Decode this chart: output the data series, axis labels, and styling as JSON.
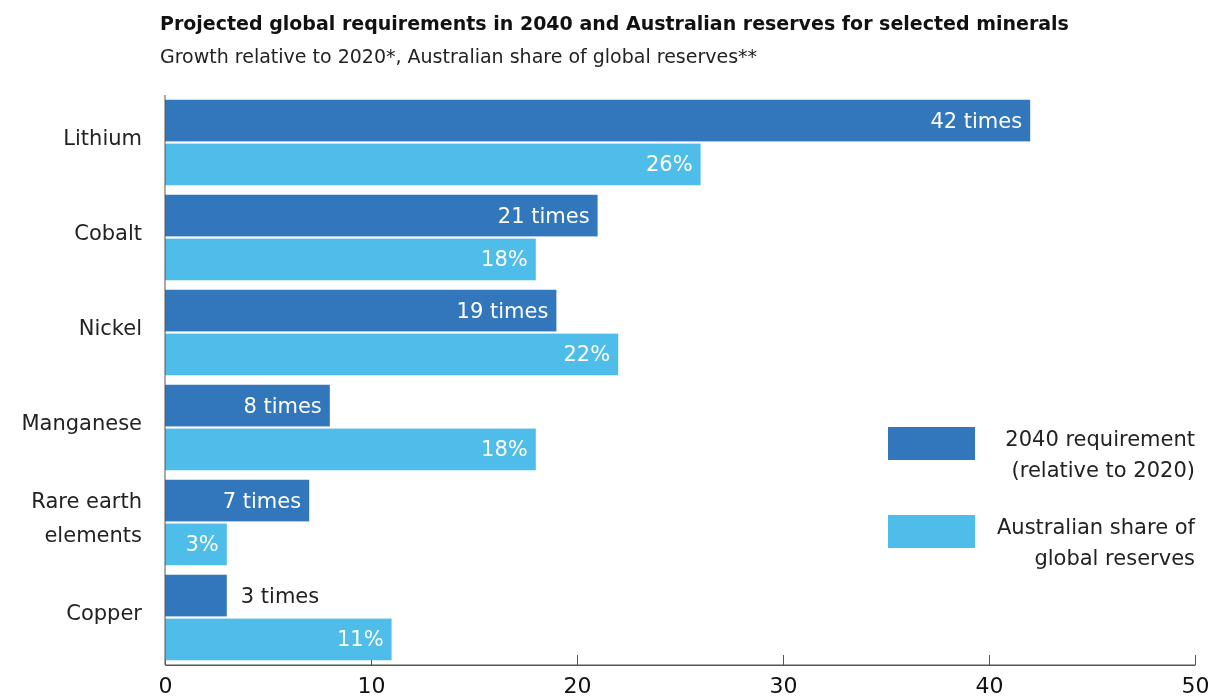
{
  "chart_data": {
    "type": "bar",
    "orientation": "horizontal",
    "title": "Projected global requirements in 2040 and Australian reserves for selected minerals",
    "subtitle": "Growth relative to 2020*, Australian share of global reserves**",
    "categories": [
      "Lithium",
      "Cobalt",
      "Nickel",
      "Manganese",
      "Rare earth elements",
      "Copper"
    ],
    "series": [
      {
        "name": "2040 requirement (relative to 2020)",
        "color": "#3277bc",
        "values": [
          42,
          21,
          19,
          8,
          7,
          3
        ],
        "value_labels": [
          "42 times",
          "21 times",
          "19 times",
          "8 times",
          "7 times",
          "3 times"
        ]
      },
      {
        "name": "Australian share of global reserves",
        "color": "#4fbde9",
        "values": [
          26,
          18,
          22,
          18,
          3,
          11
        ],
        "value_labels": [
          "26%",
          "18%",
          "22%",
          "18%",
          "3%",
          "11%"
        ]
      }
    ],
    "xlim": [
      0,
      50
    ],
    "xticks": [
      0,
      10,
      20,
      30,
      40,
      50
    ],
    "grid": false,
    "legend": "right"
  }
}
